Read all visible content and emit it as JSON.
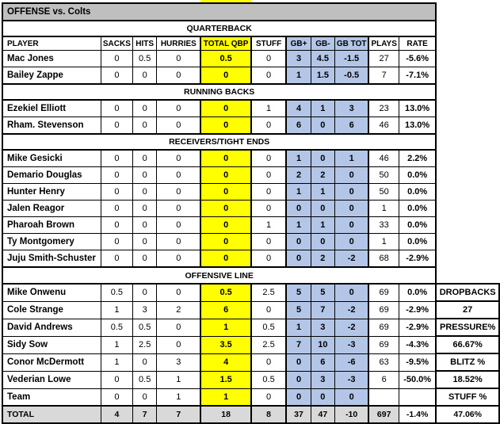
{
  "title": "OFFENSE vs. Colts",
  "columns": [
    "PLAYER",
    "SACKS",
    "HITS",
    "HURRIES",
    "TOTAL QBP",
    "STUFF",
    "GB+",
    "GB-",
    "GB TOT",
    "PLAYS",
    "RATE"
  ],
  "sections": [
    {
      "label": "QUARTERBACK",
      "rows": [
        {
          "name": "Mac Jones",
          "values": [
            "0",
            "0.5",
            "0",
            "0.5",
            "0",
            "3",
            "4.5",
            "-1.5",
            "27",
            "-5.6%"
          ]
        },
        {
          "name": "Bailey Zappe",
          "values": [
            "0",
            "0",
            "0",
            "0",
            "0",
            "1",
            "1.5",
            "-0.5",
            "7",
            "-7.1%"
          ]
        }
      ]
    },
    {
      "label": "RUNNING BACKS",
      "rows": [
        {
          "name": "Ezekiel Elliott",
          "values": [
            "0",
            "0",
            "0",
            "0",
            "1",
            "4",
            "1",
            "3",
            "23",
            "13.0%"
          ]
        },
        {
          "name": "Rham. Stevenson",
          "values": [
            "0",
            "0",
            "0",
            "0",
            "0",
            "6",
            "0",
            "6",
            "46",
            "13.0%"
          ]
        }
      ]
    },
    {
      "label": "RECEIVERS/TIGHT ENDS",
      "rows": [
        {
          "name": "Mike Gesicki",
          "values": [
            "0",
            "0",
            "0",
            "0",
            "0",
            "1",
            "0",
            "1",
            "46",
            "2.2%"
          ]
        },
        {
          "name": "Demario Douglas",
          "values": [
            "0",
            "0",
            "0",
            "0",
            "0",
            "2",
            "2",
            "0",
            "50",
            "0.0%"
          ]
        },
        {
          "name": "Hunter Henry",
          "values": [
            "0",
            "0",
            "0",
            "0",
            "0",
            "1",
            "1",
            "0",
            "50",
            "0.0%"
          ]
        },
        {
          "name": "Jalen Reagor",
          "values": [
            "0",
            "0",
            "0",
            "0",
            "0",
            "0",
            "0",
            "0",
            "1",
            "0.0%"
          ]
        },
        {
          "name": "Pharoah Brown",
          "values": [
            "0",
            "0",
            "0",
            "0",
            "1",
            "1",
            "1",
            "0",
            "33",
            "0.0%"
          ]
        },
        {
          "name": "Ty Montgomery",
          "values": [
            "0",
            "0",
            "0",
            "0",
            "0",
            "0",
            "0",
            "0",
            "1",
            "0.0%"
          ]
        },
        {
          "name": "Juju Smith-Schuster",
          "values": [
            "0",
            "0",
            "0",
            "0",
            "0",
            "0",
            "2",
            "-2",
            "68",
            "-2.9%"
          ]
        }
      ]
    },
    {
      "label": "OFFENSIVE LINE",
      "rows": [
        {
          "name": "Mike Onwenu",
          "values": [
            "0.5",
            "0",
            "0",
            "0.5",
            "2.5",
            "5",
            "5",
            "0",
            "69",
            "0.0%"
          ]
        },
        {
          "name": "Cole Strange",
          "values": [
            "1",
            "3",
            "2",
            "6",
            "0",
            "5",
            "7",
            "-2",
            "69",
            "-2.9%"
          ]
        },
        {
          "name": "David Andrews",
          "values": [
            "0.5",
            "0.5",
            "0",
            "1",
            "0.5",
            "1",
            "3",
            "-2",
            "69",
            "-2.9%"
          ]
        },
        {
          "name": "Sidy Sow",
          "values": [
            "1",
            "2.5",
            "0",
            "3.5",
            "2.5",
            "7",
            "10",
            "-3",
            "69",
            "-4.3%"
          ]
        },
        {
          "name": "Conor McDermott",
          "values": [
            "1",
            "0",
            "3",
            "4",
            "0",
            "0",
            "6",
            "-6",
            "63",
            "-9.5%"
          ]
        },
        {
          "name": "Vederian Lowe",
          "values": [
            "0",
            "0.5",
            "1",
            "1.5",
            "0.5",
            "0",
            "3",
            "-3",
            "6",
            "-50.0%"
          ]
        },
        {
          "name": "Team",
          "values": [
            "0",
            "0",
            "1",
            "1",
            "0",
            "0",
            "0",
            "0",
            "",
            ""
          ]
        }
      ]
    }
  ],
  "total": {
    "name": "TOTAL",
    "values": [
      "4",
      "7",
      "7",
      "18",
      "8",
      "37",
      "47",
      "-10",
      "697",
      "-1.4%"
    ]
  },
  "side_column": {
    "values": [
      "DROPBACKS",
      "27",
      "PRESSURE%",
      "66.67%",
      "BLITZ %",
      "18.52%",
      "STUFF %",
      "47.06%"
    ]
  },
  "colors": {
    "title_bg": "#BFBFBF",
    "total_bg": "#D9D9D9",
    "highlight_yellow": "#FFFF00",
    "highlight_blue": "#B4C6E7",
    "border": "#000000"
  }
}
